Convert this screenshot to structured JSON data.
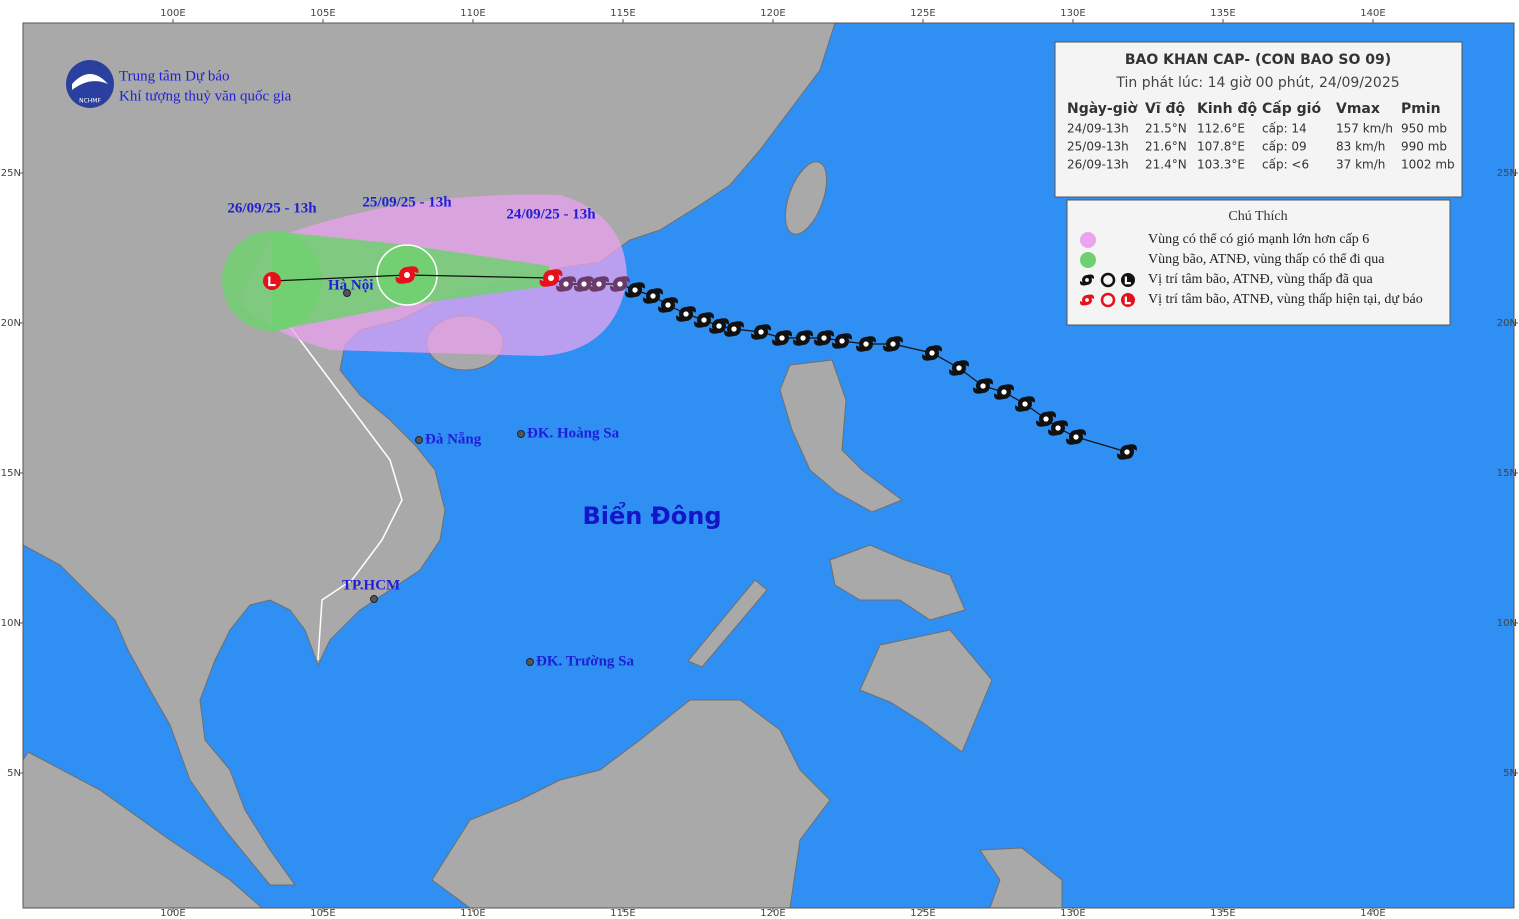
{
  "header": {
    "title": "BAO KHAN CAP- (CON BAO SO 09)",
    "issued": "Tin phát lúc: 14 giờ 00 phút, 24/09/2025"
  },
  "table": {
    "columns": [
      "Ngày-giờ",
      "Vĩ độ",
      "Kinh độ",
      "Cấp gió",
      "Vmax",
      "Pmin"
    ],
    "rows": [
      [
        "24/09-13h",
        "21.5°N",
        "112.6°E",
        "cấp: 14",
        "157 km/h",
        "950 mb"
      ],
      [
        "25/09-13h",
        "21.6°N",
        "107.8°E",
        "cấp: 09",
        "83 km/h",
        "990 mb"
      ],
      [
        "26/09-13h",
        "21.4°N",
        "103.3°E",
        "cấp: <6",
        "37 km/h",
        "1002 mb"
      ]
    ]
  },
  "legend": {
    "title": "Chú Thích",
    "items": [
      "Vùng có thể có gió mạnh lớn hơn cấp 6",
      "Vùng bão, ATNĐ, vùng thấp có thể đi qua",
      "Vị trí tâm bão, ATNĐ, vùng thấp đã qua",
      "Vị trí tâm bão, ATNĐ, vùng thấp hiện tại, dự báo"
    ]
  },
  "logo": {
    "org": "NCHMF",
    "line1": "Trung tâm Dự báo",
    "line2": "Khí tượng thuỷ văn quốc gia"
  },
  "map": {
    "lonlim": [
      95,
      144.7
    ],
    "latlim": [
      0.5,
      30
    ],
    "lonticks": [
      {
        "value": 100,
        "label": "100E"
      },
      {
        "value": 105,
        "label": "105E"
      },
      {
        "value": 110,
        "label": "110E"
      },
      {
        "value": 115,
        "label": "115E"
      },
      {
        "value": 120,
        "label": "120E"
      },
      {
        "value": 125,
        "label": "125E"
      },
      {
        "value": 130,
        "label": "130E"
      },
      {
        "value": 135,
        "label": "135E"
      },
      {
        "value": 140,
        "label": "140E"
      }
    ],
    "latticks": [
      {
        "value": 25,
        "label": "25N"
      },
      {
        "value": 20,
        "label": "20N"
      },
      {
        "value": 15,
        "label": "15N"
      },
      {
        "value": 10,
        "label": "10N"
      },
      {
        "value": 5,
        "label": "5N"
      }
    ],
    "sea_label": "Biển Đông",
    "places": [
      {
        "name": "Hà Nội",
        "lon": 105.8,
        "lat": 21.0
      },
      {
        "name": "Đà Nẵng",
        "lon": 108.2,
        "lat": 16.1
      },
      {
        "name": "ĐK. Hoàng Sa",
        "lon": 111.6,
        "lat": 16.3
      },
      {
        "name": "TP.HCM",
        "lon": 106.7,
        "lat": 10.8
      },
      {
        "name": "ĐK. Trường Sa",
        "lon": 111.9,
        "lat": 8.7
      }
    ],
    "past_track": [
      {
        "lon": 131.8,
        "lat": 15.7
      },
      {
        "lon": 130.1,
        "lat": 16.2
      },
      {
        "lon": 129.5,
        "lat": 16.5
      },
      {
        "lon": 129.1,
        "lat": 16.8
      },
      {
        "lon": 128.4,
        "lat": 17.3
      },
      {
        "lon": 127.7,
        "lat": 17.7
      },
      {
        "lon": 127.0,
        "lat": 17.9
      },
      {
        "lon": 126.2,
        "lat": 18.5
      },
      {
        "lon": 125.3,
        "lat": 19.0
      },
      {
        "lon": 124.0,
        "lat": 19.3
      },
      {
        "lon": 123.1,
        "lat": 19.3
      },
      {
        "lon": 122.3,
        "lat": 19.4
      },
      {
        "lon": 121.7,
        "lat": 19.5
      },
      {
        "lon": 121.0,
        "lat": 19.5
      },
      {
        "lon": 120.3,
        "lat": 19.5
      },
      {
        "lon": 119.6,
        "lat": 19.7
      },
      {
        "lon": 118.7,
        "lat": 19.8
      },
      {
        "lon": 118.2,
        "lat": 19.9
      },
      {
        "lon": 117.7,
        "lat": 20.1
      },
      {
        "lon": 117.1,
        "lat": 20.3
      },
      {
        "lon": 116.5,
        "lat": 20.6
      },
      {
        "lon": 116.0,
        "lat": 20.9
      },
      {
        "lon": 115.4,
        "lat": 21.1
      },
      {
        "lon": 114.9,
        "lat": 21.3
      },
      {
        "lon": 114.2,
        "lat": 21.3
      },
      {
        "lon": 113.7,
        "lat": 21.3
      },
      {
        "lon": 113.1,
        "lat": 21.3
      }
    ],
    "forecast_track": [
      {
        "lon": 112.6,
        "lat": 21.5
      },
      {
        "lon": 107.8,
        "lat": 21.6
      },
      {
        "lon": 103.3,
        "lat": 21.4
      }
    ],
    "forecast_labels": [
      "24/09/25 - 13h",
      "25/09/25 - 13h",
      "26/09/25 - 13h"
    ]
  }
}
